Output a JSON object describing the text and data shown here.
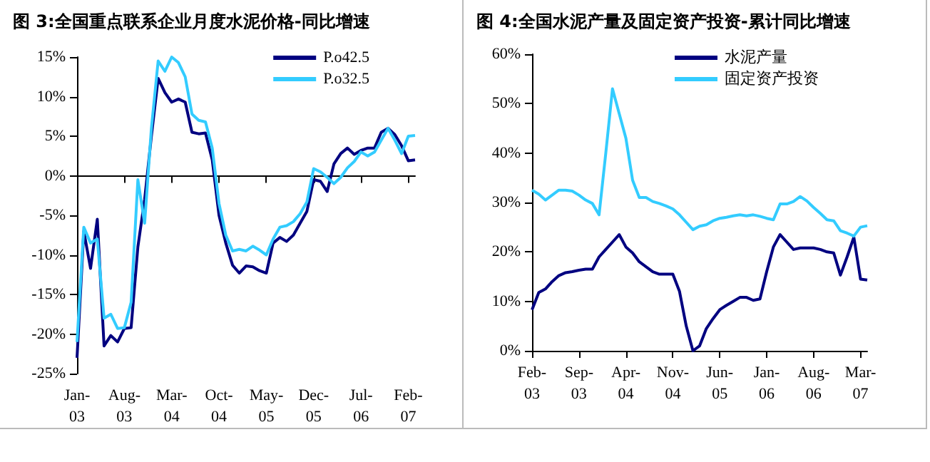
{
  "chart_data": [
    {
      "type": "line",
      "title": "图 3:全国重点联系企业月度水泥价格-同比增速",
      "categories": [
        "Jan-03",
        null,
        null,
        null,
        null,
        null,
        null,
        "Aug-03",
        null,
        null,
        null,
        null,
        null,
        null,
        "Mar-04",
        null,
        null,
        null,
        null,
        null,
        null,
        "Oct-04",
        null,
        null,
        null,
        null,
        null,
        null,
        "May-05",
        null,
        null,
        null,
        null,
        null,
        null,
        "Dec-05",
        null,
        null,
        null,
        null,
        null,
        null,
        "Jul-06",
        null,
        null,
        null,
        null,
        null,
        null,
        "Feb-07",
        null
      ],
      "series": [
        {
          "name": "P.o42.5",
          "color": "#000080",
          "values": [
            -23,
            -7,
            -11.7,
            -5.5,
            -21.5,
            -20.2,
            -21,
            -19.3,
            -19.2,
            -9,
            -3,
            5,
            12.3,
            10.5,
            9.3,
            9.7,
            9.3,
            5.5,
            5.3,
            5.4,
            2,
            -5,
            -8.5,
            -11.3,
            -12.3,
            -11.4,
            -11.5,
            -12,
            -12.3,
            -8.5,
            -7.8,
            -8.3,
            -7.5,
            -6,
            -4.5,
            -0.5,
            -0.7,
            -2,
            1.5,
            2.8,
            3.5,
            2.7,
            3.2,
            3.5,
            3.5,
            5.5,
            6,
            5.2,
            3.8,
            1.9,
            2
          ]
        },
        {
          "name": "P.o32.5",
          "color": "#33ccff",
          "values": [
            -21,
            -6.5,
            -8.5,
            -8,
            -18,
            -17.5,
            -19.3,
            -19.2,
            -16,
            -0.5,
            -6,
            6,
            14.5,
            13.2,
            15,
            14.3,
            12.5,
            7.8,
            7,
            6.8,
            3.5,
            -3.5,
            -7.5,
            -9.5,
            -9.3,
            -9.5,
            -8.9,
            -9.4,
            -10,
            -8,
            -6.5,
            -6.3,
            -5.8,
            -4.8,
            -3.3,
            0.9,
            0.5,
            -0.2,
            -1,
            -0.2,
            1,
            1.8,
            3,
            2.5,
            3,
            4.5,
            6,
            4.5,
            2.8,
            5,
            5.1
          ]
        }
      ],
      "ylim": [
        -25,
        15
      ],
      "yticks": [
        {
          "value": -25,
          "label": "-25%"
        },
        {
          "value": -20,
          "label": "-20%"
        },
        {
          "value": -15,
          "label": "-15%"
        },
        {
          "value": -10,
          "label": "-10%"
        },
        {
          "value": -5,
          "label": "-5%"
        },
        {
          "value": 0,
          "label": "0%"
        },
        {
          "value": 5,
          "label": "5%"
        },
        {
          "value": 10,
          "label": "10%"
        },
        {
          "value": 15,
          "label": "15%"
        }
      ],
      "legend": "top right",
      "marker": "none"
    },
    {
      "type": "line",
      "title": "图 4:全国水泥产量及固定资产投资-累计同比增速",
      "categories": [
        "Feb-03",
        null,
        null,
        null,
        null,
        null,
        null,
        "Sep-03",
        null,
        null,
        null,
        null,
        null,
        null,
        "Apr-04",
        null,
        null,
        null,
        null,
        null,
        null,
        "Nov-04",
        null,
        null,
        null,
        null,
        null,
        null,
        "Jun-05",
        null,
        null,
        null,
        null,
        null,
        null,
        "Jan-06",
        null,
        null,
        null,
        null,
        null,
        null,
        "Aug-06",
        null,
        null,
        null,
        null,
        null,
        null,
        "Mar-07",
        null
      ],
      "series": [
        {
          "name": "水泥产量",
          "color": "#000080",
          "values": [
            8.3,
            11.8,
            12.5,
            14,
            15.2,
            15.8,
            16,
            16.3,
            16.5,
            16.5,
            19,
            20.5,
            22,
            23.5,
            21,
            19.8,
            18,
            17,
            16,
            15.5,
            15.5,
            15.5,
            12,
            5,
            0,
            1,
            4.5,
            6.5,
            8.3,
            9.2,
            10,
            10.8,
            10.8,
            10.2,
            10.5,
            16,
            21,
            23.5,
            22,
            20.5,
            20.8,
            20.8,
            20.8,
            20.5,
            20,
            19.8,
            15.3,
            19,
            23,
            14.5,
            14.3
          ]
        },
        {
          "name": "固定资产投资",
          "color": "#33ccff",
          "values": [
            32.5,
            31.7,
            30.5,
            31.5,
            32.5,
            32.5,
            32.3,
            31.5,
            30.5,
            29.8,
            27.5,
            40,
            53,
            48,
            43,
            34.5,
            31,
            31,
            30.2,
            29.8,
            29.3,
            28.7,
            27.5,
            26,
            24.5,
            25.2,
            25.5,
            26.3,
            26.8,
            27,
            27.3,
            27.5,
            27.3,
            27.5,
            27.2,
            26.8,
            26.5,
            29.7,
            29.7,
            30.2,
            31.2,
            30.3,
            29,
            27.8,
            26.5,
            26.3,
            24.3,
            23.8,
            23.2,
            25,
            25.3
          ]
        }
      ],
      "ylim": [
        0,
        60
      ],
      "yticks": [
        {
          "value": 0,
          "label": "0%"
        },
        {
          "value": 10,
          "label": "10%"
        },
        {
          "value": 20,
          "label": "20%"
        },
        {
          "value": 30,
          "label": "30%"
        },
        {
          "value": 40,
          "label": "40%"
        },
        {
          "value": 50,
          "label": "50%"
        },
        {
          "value": 60,
          "label": "60%"
        }
      ],
      "legend": "top right",
      "marker": "none"
    }
  ]
}
